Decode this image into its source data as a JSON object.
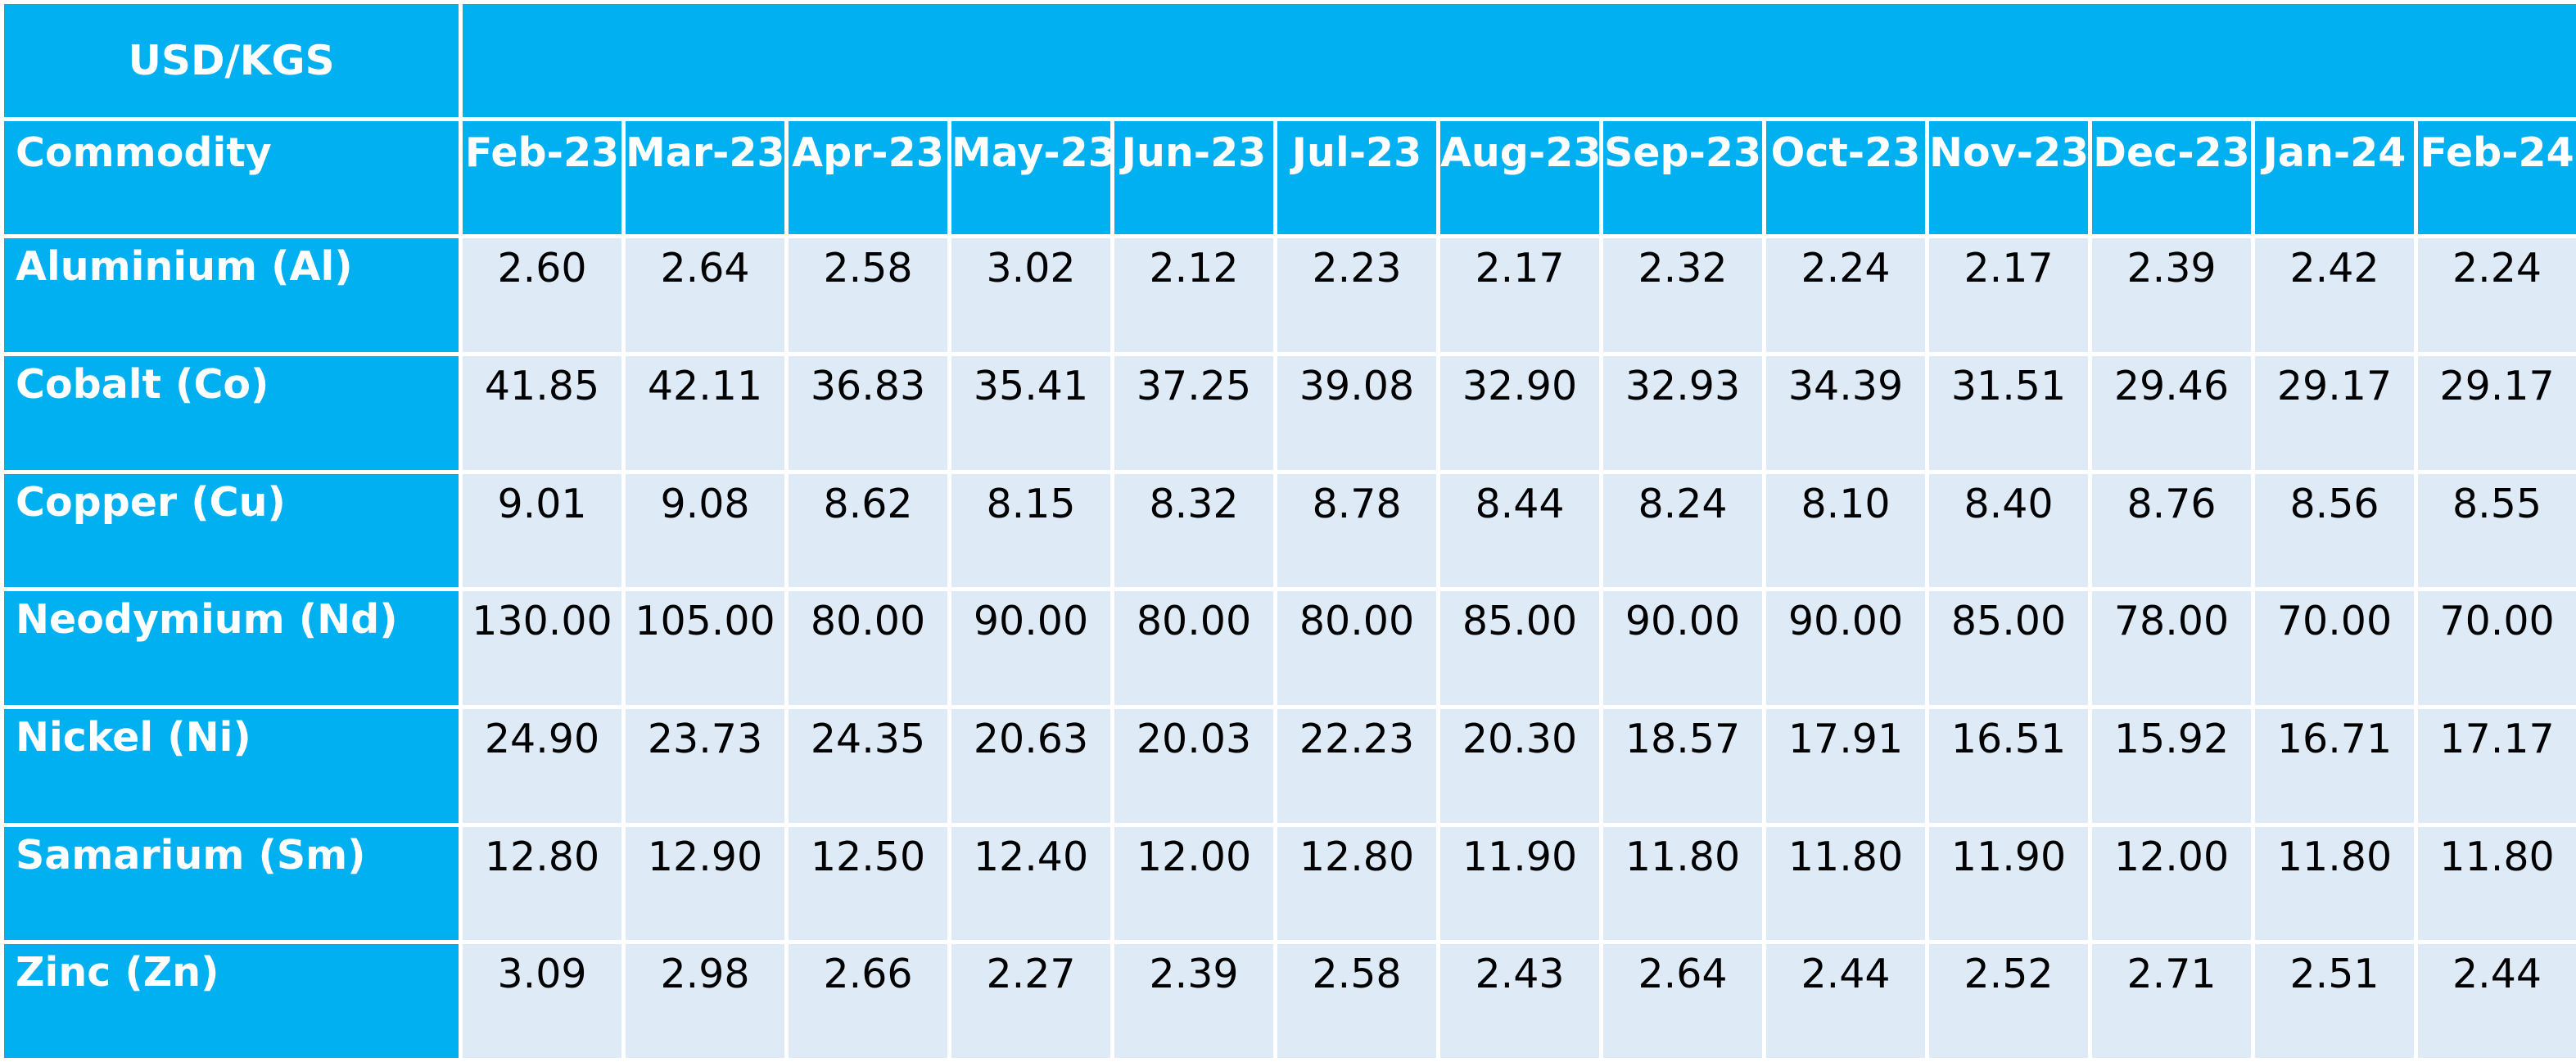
{
  "chart_data": {
    "type": "table",
    "title": "USD/KGS",
    "row_header": "Commodity",
    "columns": [
      "Feb-23",
      "Mar-23",
      "Apr-23",
      "May-23",
      "Jun-23",
      "Jul-23",
      "Aug-23",
      "Sep-23",
      "Oct-23",
      "Nov-23",
      "Dec-23",
      "Jan-24",
      "Feb-24"
    ],
    "rows": [
      {
        "name": "Aluminium (Al)",
        "values": [
          "2.60",
          "2.64",
          "2.58",
          "3.02",
          "2.12",
          "2.23",
          "2.17",
          "2.32",
          "2.24",
          "2.17",
          "2.39",
          "2.42",
          "2.24"
        ]
      },
      {
        "name": "Cobalt (Co)",
        "values": [
          "41.85",
          "42.11",
          "36.83",
          "35.41",
          "37.25",
          "39.08",
          "32.90",
          "32.93",
          "34.39",
          "31.51",
          "29.46",
          "29.17",
          "29.17"
        ]
      },
      {
        "name": "Copper (Cu)",
        "values": [
          "9.01",
          "9.08",
          "8.62",
          "8.15",
          "8.32",
          "8.78",
          "8.44",
          "8.24",
          "8.10",
          "8.40",
          "8.76",
          "8.56",
          "8.55"
        ]
      },
      {
        "name": "Neodymium (Nd)",
        "values": [
          "130.00",
          "105.00",
          "80.00",
          "90.00",
          "80.00",
          "80.00",
          "85.00",
          "90.00",
          "90.00",
          "85.00",
          "78.00",
          "70.00",
          "70.00"
        ]
      },
      {
        "name": "Nickel (Ni)",
        "values": [
          "24.90",
          "23.73",
          "24.35",
          "20.63",
          "20.03",
          "22.23",
          "20.30",
          "18.57",
          "17.91",
          "16.51",
          "15.92",
          "16.71",
          "17.17"
        ]
      },
      {
        "name": "Samarium (Sm)",
        "values": [
          "12.80",
          "12.90",
          "12.50",
          "12.40",
          "12.00",
          "12.80",
          "11.90",
          "11.80",
          "11.80",
          "11.90",
          "12.00",
          "11.80",
          "11.80"
        ]
      },
      {
        "name": "Zinc (Zn)",
        "values": [
          "3.09",
          "2.98",
          "2.66",
          "2.27",
          "2.39",
          "2.58",
          "2.43",
          "2.64",
          "2.44",
          "2.52",
          "2.71",
          "2.51",
          "2.44"
        ]
      }
    ]
  },
  "colors": {
    "header_fill": "#00b0f0",
    "cell_fill": "#deebf7",
    "grid_line": "#ffffff",
    "header_text": "#ffffff",
    "cell_text": "#000000"
  }
}
